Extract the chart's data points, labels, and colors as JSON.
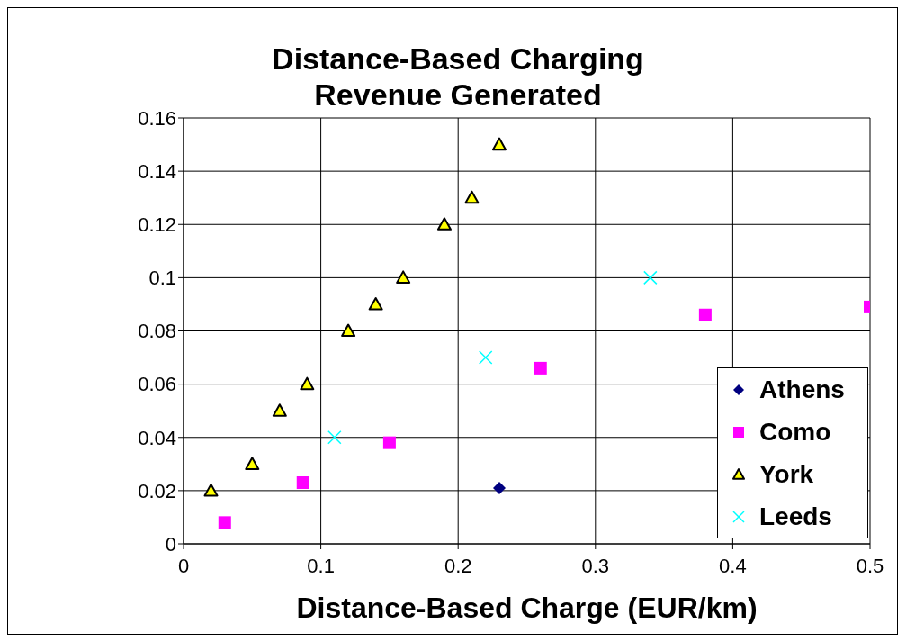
{
  "chart_data": {
    "type": "scatter",
    "title": "Distance-Based Charging Revenue Generated",
    "xlabel": "Distance-Based Charge (EUR/km)",
    "xlim": [
      0,
      0.5
    ],
    "xticks": [
      0,
      0.1,
      0.2,
      0.3,
      0.4,
      0.5
    ],
    "ylim": [
      0,
      0.16
    ],
    "yticks": [
      0,
      0.02,
      0.04,
      0.06,
      0.08,
      0.1,
      0.12,
      0.14,
      0.16
    ],
    "grid": true,
    "legend": "bottom right",
    "series": [
      {
        "name": "Athens",
        "color": "#000080",
        "marker": "diamond",
        "x": [
          0.23
        ],
        "values": [
          0.021
        ]
      },
      {
        "name": "Como",
        "color": "#ff00ff",
        "marker": "square",
        "x": [
          0.03,
          0.087,
          0.15,
          0.26,
          0.38,
          0.5
        ],
        "values": [
          0.008,
          0.023,
          0.038,
          0.066,
          0.086,
          0.089
        ]
      },
      {
        "name": "York",
        "color": "#ffff00",
        "marker": "triangle",
        "x": [
          0.02,
          0.05,
          0.07,
          0.09,
          0.12,
          0.14,
          0.16,
          0.19,
          0.21,
          0.23
        ],
        "values": [
          0.02,
          0.03,
          0.05,
          0.06,
          0.08,
          0.09,
          0.1,
          0.12,
          0.13,
          0.15
        ]
      },
      {
        "name": "Leeds",
        "color": "#00ffff",
        "marker": "cross",
        "x": [
          0.11,
          0.22,
          0.34
        ],
        "values": [
          0.04,
          0.07,
          0.1
        ]
      }
    ]
  }
}
